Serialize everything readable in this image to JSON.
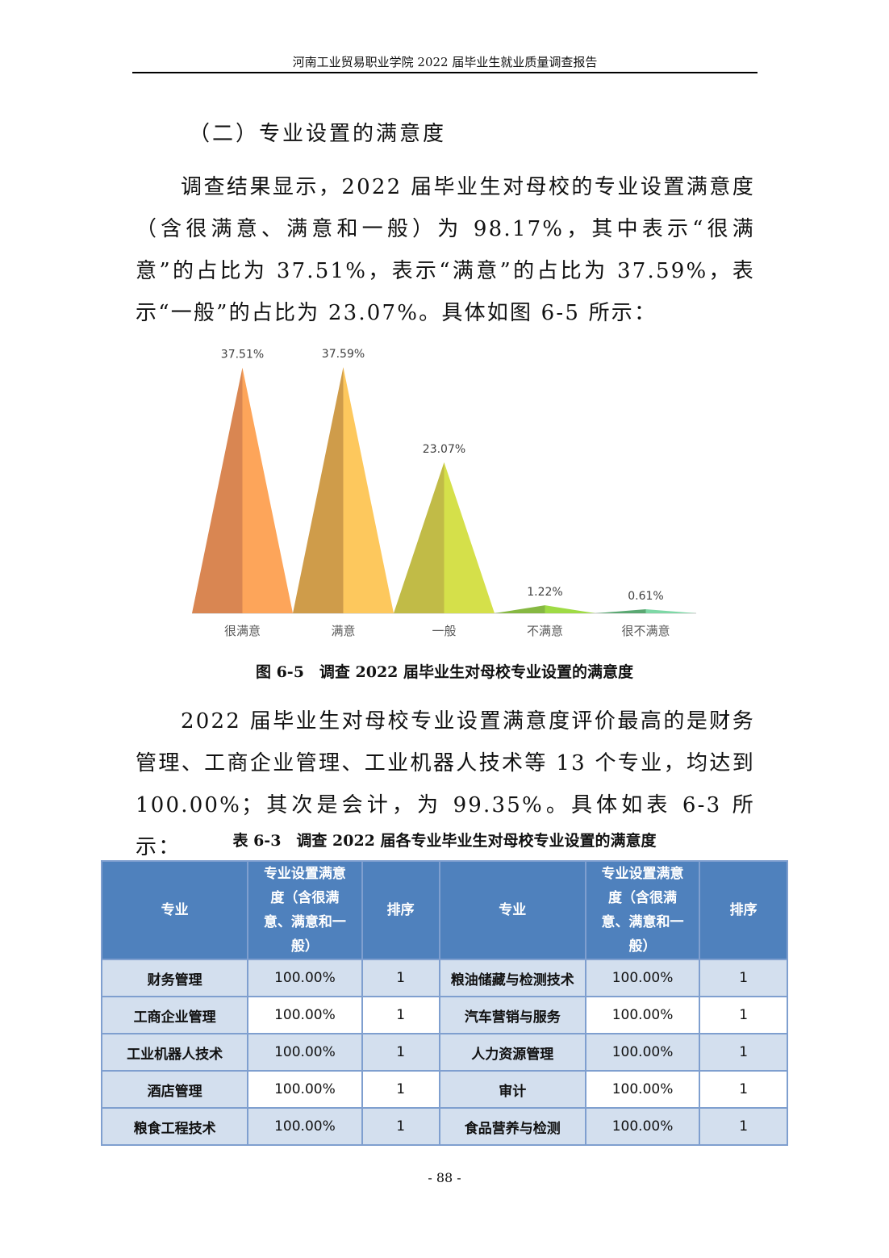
{
  "header": "河南工业贸易职业学院 2022 届毕业生就业质量调查报告",
  "section_title": "（二）专业设置的满意度",
  "para1": "调查结果显示，2022 届毕业生对母校的专业设置满意度（含很满意、满意和一般）为 98.17%，其中表示“很满意”的占比为 37.51%，表示“满意”的占比为 37.59%，表示“一般”的占比为 23.07%。具体如图 6-5 所示：",
  "figure_caption": "图 6-5　调查 2022 届毕业生对母校专业设置的满意度",
  "chart_data": {
    "type": "bar",
    "categories": [
      "很满意",
      "满意",
      "一般",
      "不满意",
      "很不满意"
    ],
    "values": [
      37.51,
      37.59,
      23.07,
      1.22,
      0.61
    ],
    "labels": [
      "37.51%",
      "37.59%",
      "23.07%",
      "1.22%",
      "0.61%"
    ],
    "colors": [
      [
        "#d98652",
        "#fda55a"
      ],
      [
        "#cf9c4a",
        "#fdc85d"
      ],
      [
        "#c1bb47",
        "#d5e04a"
      ],
      [
        "#86b842",
        "#9fdb45"
      ],
      [
        "#5aa872",
        "#7ed8a6"
      ]
    ],
    "ylim": [
      0,
      40
    ],
    "grid": false,
    "legend": "none",
    "shape": "triangle"
  },
  "para2": "2022 届毕业生对母校专业设置满意度评价最高的是财务管理、工商企业管理、工业机器人技术等 13 个专业，均达到 100.00%；其次是会计，为 99.35%。具体如表 6-3 所示：",
  "table_caption": "表 6-3　调查 2022 届各专业毕业生对母校专业设置的满意度",
  "table": {
    "headers": [
      "专业",
      "专业设置满意度（含很满意、满意和一般）",
      "排序",
      "专业",
      "专业设置满意度（含很满意、满意和一般）",
      "排序"
    ],
    "rows": [
      [
        "财务管理",
        "100.00%",
        "1",
        "粮油储藏与检测技术",
        "100.00%",
        "1"
      ],
      [
        "工商企业管理",
        "100.00%",
        "1",
        "汽车营销与服务",
        "100.00%",
        "1"
      ],
      [
        "工业机器人技术",
        "100.00%",
        "1",
        "人力资源管理",
        "100.00%",
        "1"
      ],
      [
        "酒店管理",
        "100.00%",
        "1",
        "审计",
        "100.00%",
        "1"
      ],
      [
        "粮食工程技术",
        "100.00%",
        "1",
        "食品营养与检测",
        "100.00%",
        "1"
      ]
    ]
  },
  "page_number": "- 88 -"
}
